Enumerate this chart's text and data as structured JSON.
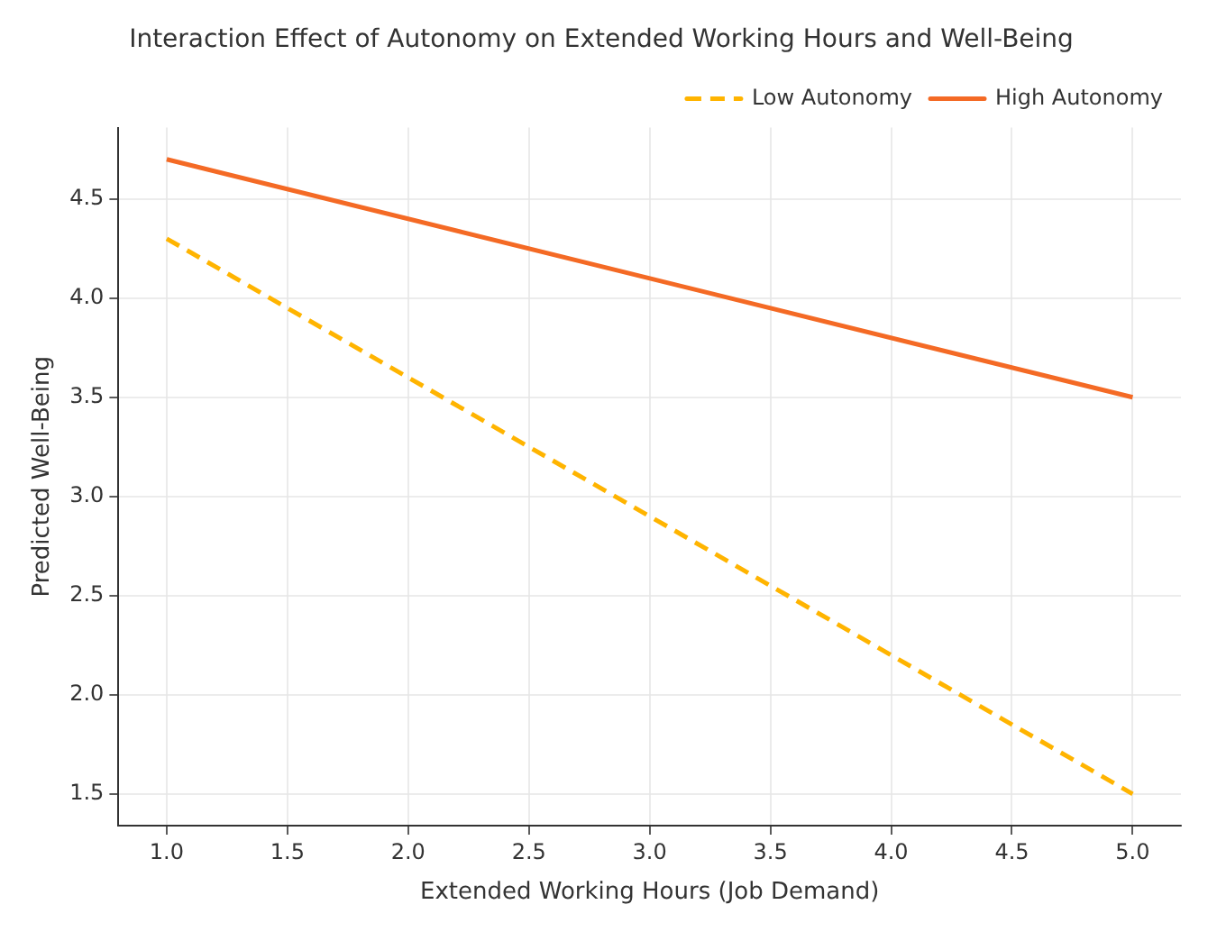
{
  "chart_data": {
    "type": "line",
    "title": "Interaction Effect of Autonomy on Extended Working Hours and Well-Being",
    "xlabel": "Extended Working Hours (Job Demand)",
    "ylabel": "Predicted Well-Being",
    "x": [
      1,
      5
    ],
    "series": [
      {
        "name": "Low Autonomy",
        "color": "#ffb400",
        "values": [
          4.3,
          1.5
        ],
        "line_style": "dashed"
      },
      {
        "name": "High Autonomy",
        "color": "#f46a25",
        "values": [
          4.7,
          3.5
        ],
        "line_style": "solid"
      }
    ],
    "xlim": [
      0.8,
      5.2
    ],
    "xticks": [
      {
        "value": 1,
        "label": "1.0"
      },
      {
        "value": 1.5,
        "label": "1.5"
      },
      {
        "value": 2,
        "label": "2.0"
      },
      {
        "value": 2.5,
        "label": "2.5"
      },
      {
        "value": 3,
        "label": "3.0"
      },
      {
        "value": 3.5,
        "label": "3.5"
      },
      {
        "value": 4,
        "label": "4.0"
      },
      {
        "value": 4.5,
        "label": "4.5"
      },
      {
        "value": 5,
        "label": "5.0"
      }
    ],
    "ylim": [
      1.34,
      4.86
    ],
    "yticks": [
      {
        "value": 1.5,
        "label": "1.5"
      },
      {
        "value": 2,
        "label": "2.0"
      },
      {
        "value": 2.5,
        "label": "2.5"
      },
      {
        "value": 3,
        "label": "3.0"
      },
      {
        "value": 3.5,
        "label": "3.5"
      },
      {
        "value": 4,
        "label": "4.0"
      },
      {
        "value": 4.5,
        "label": "4.5"
      }
    ],
    "grid": true,
    "legend": "top right",
    "marker": "none"
  }
}
